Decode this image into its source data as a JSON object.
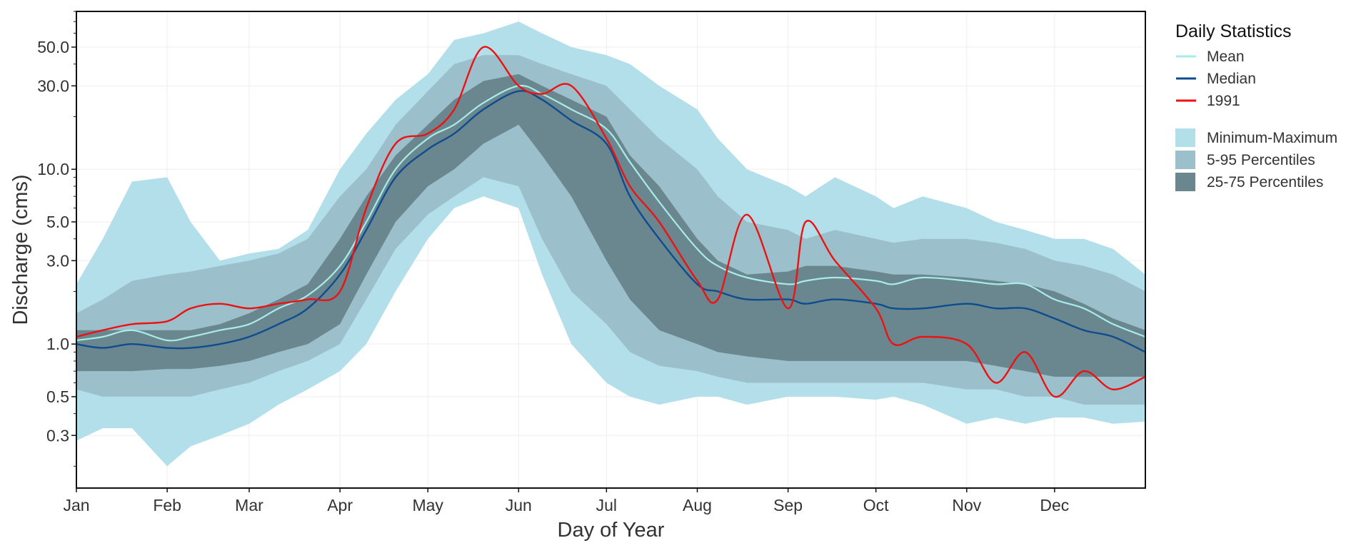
{
  "chart_data": {
    "type": "area",
    "title": "",
    "xlabel": "Day of Year",
    "ylabel": "Discharge (cms)",
    "y_scale": "log",
    "ylim": [
      0.15,
      80
    ],
    "xlim": [
      1,
      366
    ],
    "grid": true,
    "legend_placement": "right, outside plot",
    "x_ticks": [
      {
        "day": 1,
        "label": "Jan"
      },
      {
        "day": 32,
        "label": "Feb"
      },
      {
        "day": 60,
        "label": "Mar"
      },
      {
        "day": 91,
        "label": "Apr"
      },
      {
        "day": 121,
        "label": "May"
      },
      {
        "day": 152,
        "label": "Jun"
      },
      {
        "day": 182,
        "label": "Jul"
      },
      {
        "day": 213,
        "label": "Aug"
      },
      {
        "day": 244,
        "label": "Sep"
      },
      {
        "day": 274,
        "label": "Oct"
      },
      {
        "day": 305,
        "label": "Nov"
      },
      {
        "day": 335,
        "label": "Dec"
      }
    ],
    "y_ticks": [
      {
        "value": 0.3,
        "label": "0.3"
      },
      {
        "value": 0.5,
        "label": "0.5"
      },
      {
        "value": 1.0,
        "label": "1.0"
      },
      {
        "value": 3.0,
        "label": "3.0"
      },
      {
        "value": 5.0,
        "label": "5.0"
      },
      {
        "value": 10.0,
        "label": "10.0"
      },
      {
        "value": 30.0,
        "label": "30.0"
      },
      {
        "value": 50.0,
        "label": "50.0"
      }
    ],
    "legend": {
      "title": "Daily Statistics",
      "lines": [
        {
          "key": "mean",
          "label": "Mean",
          "color": "#a8ece8"
        },
        {
          "key": "median",
          "label": "Median",
          "color": "#0d4c8f"
        },
        {
          "key": "y1991",
          "label": "1991",
          "color": "#ee1111"
        }
      ],
      "bands": [
        {
          "key": "minmax",
          "label": "Minimum-Maximum",
          "color": "#b3dfea"
        },
        {
          "key": "p5_95",
          "label": "5-95 Percentiles",
          "color": "#9bbfcb"
        },
        {
          "key": "p25_75",
          "label": "25-75 Percentiles",
          "color": "#6a8790"
        }
      ]
    },
    "x": [
      1,
      10,
      20,
      32,
      40,
      50,
      60,
      70,
      80,
      91,
      100,
      110,
      121,
      130,
      140,
      152,
      160,
      170,
      182,
      190,
      200,
      213,
      220,
      230,
      244,
      250,
      260,
      274,
      280,
      290,
      305,
      315,
      325,
      335,
      345,
      355,
      366
    ],
    "series": [
      {
        "name": "Minimum-Maximum",
        "lower": [
          0.28,
          0.33,
          0.33,
          0.2,
          0.26,
          0.3,
          0.35,
          0.45,
          0.55,
          0.7,
          1.0,
          2.0,
          4.0,
          6.0,
          7.0,
          6.0,
          2.5,
          1.0,
          0.6,
          0.5,
          0.45,
          0.5,
          0.5,
          0.45,
          0.5,
          0.5,
          0.5,
          0.48,
          0.5,
          0.45,
          0.35,
          0.38,
          0.35,
          0.38,
          0.38,
          0.35,
          0.36
        ],
        "upper": [
          2.2,
          4.0,
          8.5,
          9.0,
          5.0,
          3.0,
          3.3,
          3.5,
          4.5,
          10.0,
          16.0,
          25.0,
          35.0,
          55.0,
          60.0,
          70.0,
          60.0,
          50.0,
          45.0,
          40.0,
          30.0,
          22.0,
          15.0,
          10.0,
          8.0,
          7.0,
          9.0,
          7.0,
          6.0,
          7.0,
          6.0,
          5.0,
          4.5,
          4.0,
          4.0,
          3.5,
          2.5
        ]
      },
      {
        "name": "5-95 Percentiles",
        "lower": [
          0.55,
          0.5,
          0.5,
          0.5,
          0.5,
          0.55,
          0.6,
          0.7,
          0.8,
          1.0,
          1.8,
          3.5,
          5.5,
          7.0,
          9.0,
          8.0,
          4.0,
          2.0,
          1.3,
          0.9,
          0.75,
          0.7,
          0.65,
          0.6,
          0.6,
          0.6,
          0.6,
          0.6,
          0.6,
          0.6,
          0.55,
          0.55,
          0.5,
          0.5,
          0.45,
          0.45,
          0.45
        ],
        "upper": [
          1.5,
          1.8,
          2.3,
          2.5,
          2.6,
          2.8,
          3.0,
          3.3,
          4.0,
          7.0,
          10.0,
          18.0,
          28.0,
          40.0,
          45.0,
          45.0,
          40.0,
          35.0,
          30.0,
          22.0,
          15.0,
          10.0,
          7.0,
          5.0,
          4.5,
          4.0,
          4.5,
          4.0,
          3.8,
          4.0,
          4.0,
          3.8,
          3.5,
          3.0,
          2.8,
          2.5,
          2.0
        ]
      },
      {
        "name": "25-75 Percentiles",
        "lower": [
          0.7,
          0.7,
          0.7,
          0.72,
          0.72,
          0.75,
          0.8,
          0.9,
          1.0,
          1.3,
          2.5,
          5.0,
          8.0,
          10.0,
          14.0,
          18.0,
          12.0,
          7.0,
          3.0,
          1.8,
          1.2,
          1.0,
          0.9,
          0.85,
          0.8,
          0.8,
          0.8,
          0.8,
          0.8,
          0.8,
          0.8,
          0.75,
          0.7,
          0.65,
          0.65,
          0.65,
          0.65
        ],
        "upper": [
          1.2,
          1.2,
          1.2,
          1.2,
          1.2,
          1.3,
          1.5,
          1.8,
          2.2,
          4.0,
          7.0,
          12.0,
          18.0,
          25.0,
          32.0,
          35.0,
          30.0,
          25.0,
          20.0,
          12.0,
          8.0,
          4.0,
          3.0,
          2.5,
          2.6,
          2.8,
          2.8,
          2.6,
          2.5,
          2.5,
          2.4,
          2.3,
          2.2,
          2.0,
          1.7,
          1.4,
          1.2
        ]
      },
      {
        "name": "Mean",
        "values": [
          1.05,
          1.1,
          1.2,
          1.05,
          1.1,
          1.2,
          1.3,
          1.6,
          1.9,
          2.8,
          5.0,
          10.0,
          15.0,
          18.0,
          24.0,
          30.0,
          27.0,
          22.0,
          17.0,
          11.0,
          6.5,
          3.5,
          2.8,
          2.4,
          2.2,
          2.3,
          2.4,
          2.3,
          2.2,
          2.4,
          2.3,
          2.2,
          2.2,
          1.8,
          1.6,
          1.3,
          1.1
        ]
      },
      {
        "name": "Median",
        "values": [
          1.0,
          0.95,
          1.0,
          0.95,
          0.95,
          1.0,
          1.1,
          1.3,
          1.6,
          2.5,
          4.5,
          9.0,
          13.0,
          16.0,
          22.0,
          28.0,
          25.0,
          19.0,
          14.0,
          7.0,
          4.0,
          2.2,
          2.0,
          1.8,
          1.8,
          1.7,
          1.8,
          1.7,
          1.6,
          1.6,
          1.7,
          1.6,
          1.6,
          1.4,
          1.2,
          1.1,
          0.9
        ]
      },
      {
        "name": "1991",
        "values": [
          1.1,
          1.2,
          1.3,
          1.35,
          1.6,
          1.7,
          1.6,
          1.7,
          1.8,
          2.0,
          6.0,
          14.0,
          16.0,
          22.0,
          50.0,
          30.0,
          27.0,
          30.0,
          15.0,
          8.0,
          5.0,
          2.3,
          1.8,
          5.5,
          1.6,
          5.0,
          3.0,
          1.6,
          1.0,
          1.1,
          1.0,
          0.6,
          0.9,
          0.5,
          0.7,
          0.55,
          0.65
        ]
      }
    ]
  }
}
